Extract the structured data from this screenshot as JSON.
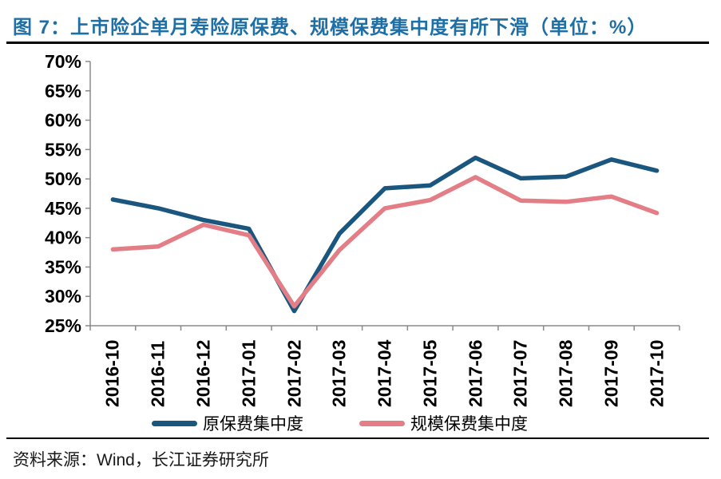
{
  "header": {
    "title": "图 7：上市险企单月寿险原保费、规模保费集中度有所下滑（单位：%）"
  },
  "footer": {
    "source": "资料来源：Wind，长江证券研究所"
  },
  "colors": {
    "title_text": "#1D6FA5",
    "axis": "#8a8a8a",
    "tick_text": "#000000",
    "primary_line": "#1A567E",
    "secondary_line": "#E37E86",
    "separator": "#000000"
  },
  "chart_data": {
    "type": "line",
    "title": "图 7：上市险企单月寿险原保费、规模保费集中度有所下滑（单位：%）",
    "categories": [
      "2016-10",
      "2016-11",
      "2016-12",
      "2017-01",
      "2017-02",
      "2017-03",
      "2017-04",
      "2017-05",
      "2017-06",
      "2017-07",
      "2017-08",
      "2017-09",
      "2017-10"
    ],
    "series": [
      {
        "name": "原保费集中度",
        "color": "#1A567E",
        "values": [
          46.5,
          45.0,
          43.0,
          41.5,
          27.5,
          40.7,
          48.4,
          48.9,
          53.6,
          50.1,
          50.4,
          53.3,
          51.4
        ]
      },
      {
        "name": "规模保费集中度",
        "color": "#E37E86",
        "values": [
          38.0,
          38.5,
          42.2,
          40.4,
          28.3,
          37.9,
          45.0,
          46.4,
          50.3,
          46.3,
          46.1,
          47.0,
          44.2
        ]
      }
    ],
    "xlabel": "",
    "ylabel": "",
    "ylim": [
      25,
      70
    ],
    "ytick_step": 5,
    "ytick_labels": [
      "25%",
      "30%",
      "35%",
      "40%",
      "45%",
      "50%",
      "55%",
      "60%",
      "65%",
      "70%"
    ],
    "grid": false,
    "legend_position": "bottom",
    "unit": "%"
  }
}
